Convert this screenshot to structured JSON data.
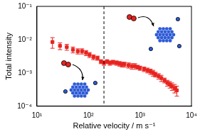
{
  "chart_data": {
    "type": "scatter",
    "x_label": "Relative velocity / m s⁻¹",
    "y_label": "Total intensity",
    "log": true,
    "grid": false,
    "marker": "square",
    "color": "#e8231f",
    "x": [
      20,
      28,
      38,
      50,
      62,
      75,
      90,
      105,
      125,
      150,
      175,
      200,
      230,
      260,
      300,
      350,
      400,
      450,
      500,
      600,
      700,
      800,
      900,
      1000,
      1200,
      1400,
      1600,
      1800,
      2000,
      2300,
      2600,
      3000,
      3400,
      3800,
      4200,
      4700,
      5200
    ],
    "values": [
      0.0085,
      0.0065,
      0.006,
      0.005,
      0.0045,
      0.0045,
      0.004,
      0.0035,
      0.003,
      0.0028,
      0.0022,
      0.002,
      0.0022,
      0.002,
      0.0021,
      0.002,
      0.0019,
      0.0018,
      0.0018,
      0.0017,
      0.0016,
      0.0016,
      0.0015,
      0.0014,
      0.0013,
      0.0012,
      0.0011,
      0.001,
      0.0009,
      0.0008,
      0.0007,
      0.0006,
      0.0005,
      0.00045,
      0.0004,
      0.00035,
      0.0003
    ],
    "errors": [
      0.003,
      0.0015,
      0.0012,
      0.001,
      0.0008,
      0.0008,
      0.0007,
      0.0006,
      0.0005,
      0.0004,
      0.0003,
      0.0003,
      0.0003,
      0.0003,
      0.0003,
      0.0003,
      0.0003,
      0.0003,
      0.0003,
      0.0003,
      0.0003,
      0.0003,
      0.0002,
      0.0002,
      0.0002,
      0.0002,
      0.0002,
      0.0002,
      0.00015,
      0.00015,
      0.00015,
      0.0001,
      0.0001,
      0.0001,
      0.0001,
      0.0001,
      0.0001
    ],
    "dashed_line_x": 200,
    "xlim": [
      10,
      10000
    ],
    "xticks": [
      {
        "value": 10,
        "label": "10¹"
      },
      {
        "value": 100,
        "label": "10²"
      },
      {
        "value": 1000,
        "label": "10³"
      },
      {
        "value": 10000,
        "label": "10⁴"
      }
    ],
    "ylim": [
      0.0001,
      0.1
    ],
    "yticks": [
      {
        "value": 0.0001,
        "label": "10⁻⁴"
      },
      {
        "value": 0.001,
        "label": "10⁻³"
      },
      {
        "value": 0.01,
        "label": "10⁻²"
      },
      {
        "value": 0.1,
        "label": "10⁻¹"
      }
    ]
  }
}
